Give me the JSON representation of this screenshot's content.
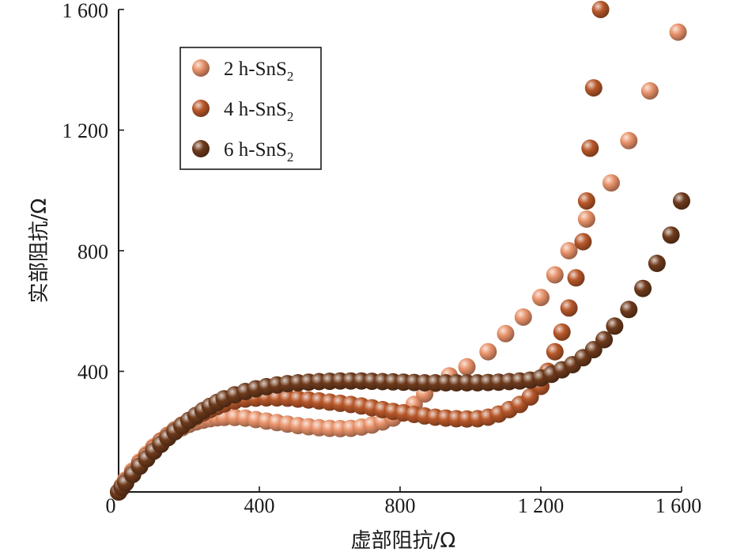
{
  "chart_data": {
    "type": "scatter",
    "xlabel": "虚部阻抗/Ω",
    "ylabel": "实部阻抗/Ω",
    "xlim": [
      0,
      1600
    ],
    "ylim": [
      0,
      1600
    ],
    "x_ticks": [
      "0",
      "400",
      "800",
      "1 200",
      "1 600"
    ],
    "y_ticks": [
      "400",
      "800",
      "1 200",
      "1 600"
    ],
    "legend_position": "top-left",
    "series": [
      {
        "name_prefix": "2 h-SnS",
        "name_subscript": "2",
        "color": "#e8926a",
        "points": [
          [
            0,
            0
          ],
          [
            10,
            20
          ],
          [
            20,
            40
          ],
          [
            40,
            70
          ],
          [
            60,
            100
          ],
          [
            80,
            125
          ],
          [
            100,
            150
          ],
          [
            120,
            170
          ],
          [
            140,
            185
          ],
          [
            160,
            200
          ],
          [
            180,
            213
          ],
          [
            200,
            224
          ],
          [
            220,
            232
          ],
          [
            240,
            238
          ],
          [
            260,
            243
          ],
          [
            280,
            246
          ],
          [
            300,
            247
          ],
          [
            330,
            247
          ],
          [
            360,
            245
          ],
          [
            390,
            240
          ],
          [
            420,
            235
          ],
          [
            450,
            230
          ],
          [
            480,
            225
          ],
          [
            510,
            220
          ],
          [
            540,
            216
          ],
          [
            570,
            213
          ],
          [
            600,
            211
          ],
          [
            630,
            210
          ],
          [
            660,
            211
          ],
          [
            690,
            215
          ],
          [
            720,
            222
          ],
          [
            750,
            232
          ],
          [
            780,
            245
          ],
          [
            810,
            263
          ],
          [
            840,
            290
          ],
          [
            870,
            325
          ],
          [
            900,
            360
          ],
          [
            940,
            385
          ],
          [
            990,
            415
          ],
          [
            1050,
            465
          ],
          [
            1100,
            525
          ],
          [
            1150,
            580
          ],
          [
            1200,
            645
          ],
          [
            1240,
            720
          ],
          [
            1280,
            800
          ],
          [
            1330,
            905
          ],
          [
            1400,
            1025
          ],
          [
            1450,
            1165
          ],
          [
            1510,
            1330
          ],
          [
            1590,
            1525
          ]
        ]
      },
      {
        "name_prefix": "4 h-SnS",
        "name_subscript": "2",
        "color": "#b8582a",
        "points": [
          [
            0,
            0
          ],
          [
            10,
            18
          ],
          [
            20,
            36
          ],
          [
            40,
            65
          ],
          [
            60,
            95
          ],
          [
            80,
            120
          ],
          [
            100,
            145
          ],
          [
            120,
            168
          ],
          [
            140,
            188
          ],
          [
            160,
            206
          ],
          [
            180,
            222
          ],
          [
            200,
            237
          ],
          [
            220,
            250
          ],
          [
            240,
            262
          ],
          [
            260,
            273
          ],
          [
            280,
            283
          ],
          [
            300,
            292
          ],
          [
            330,
            302
          ],
          [
            360,
            308
          ],
          [
            390,
            311
          ],
          [
            420,
            312
          ],
          [
            450,
            312
          ],
          [
            480,
            311
          ],
          [
            510,
            308
          ],
          [
            540,
            305
          ],
          [
            570,
            302
          ],
          [
            600,
            298
          ],
          [
            630,
            294
          ],
          [
            660,
            290
          ],
          [
            690,
            285
          ],
          [
            720,
            279
          ],
          [
            750,
            273
          ],
          [
            780,
            267
          ],
          [
            810,
            262
          ],
          [
            840,
            257
          ],
          [
            870,
            252
          ],
          [
            900,
            248
          ],
          [
            930,
            245
          ],
          [
            960,
            243
          ],
          [
            990,
            242
          ],
          [
            1020,
            243
          ],
          [
            1050,
            248
          ],
          [
            1080,
            258
          ],
          [
            1110,
            273
          ],
          [
            1140,
            290
          ],
          [
            1170,
            315
          ],
          [
            1200,
            350
          ],
          [
            1220,
            400
          ],
          [
            1240,
            465
          ],
          [
            1260,
            530
          ],
          [
            1280,
            610
          ],
          [
            1300,
            710
          ],
          [
            1320,
            830
          ],
          [
            1330,
            965
          ],
          [
            1340,
            1140
          ],
          [
            1350,
            1340
          ],
          [
            1370,
            1600
          ]
        ]
      },
      {
        "name_prefix": "6 h-SnS",
        "name_subscript": "2",
        "color": "#6e3a1c",
        "points": [
          [
            0,
            0
          ],
          [
            10,
            15
          ],
          [
            20,
            30
          ],
          [
            40,
            58
          ],
          [
            60,
            85
          ],
          [
            80,
            110
          ],
          [
            100,
            135
          ],
          [
            120,
            158
          ],
          [
            140,
            180
          ],
          [
            160,
            200
          ],
          [
            180,
            219
          ],
          [
            200,
            237
          ],
          [
            220,
            254
          ],
          [
            240,
            270
          ],
          [
            260,
            284
          ],
          [
            280,
            297
          ],
          [
            300,
            309
          ],
          [
            330,
            322
          ],
          [
            360,
            333
          ],
          [
            390,
            342
          ],
          [
            420,
            349
          ],
          [
            450,
            355
          ],
          [
            480,
            359
          ],
          [
            510,
            362
          ],
          [
            540,
            364
          ],
          [
            570,
            366
          ],
          [
            600,
            367
          ],
          [
            630,
            368
          ],
          [
            660,
            368
          ],
          [
            690,
            368
          ],
          [
            720,
            367
          ],
          [
            750,
            366
          ],
          [
            780,
            365
          ],
          [
            810,
            364
          ],
          [
            840,
            363
          ],
          [
            870,
            362
          ],
          [
            900,
            362
          ],
          [
            930,
            362
          ],
          [
            960,
            362
          ],
          [
            990,
            362
          ],
          [
            1020,
            362
          ],
          [
            1050,
            363
          ],
          [
            1080,
            364
          ],
          [
            1110,
            366
          ],
          [
            1140,
            368
          ],
          [
            1170,
            371
          ],
          [
            1200,
            378
          ],
          [
            1230,
            390
          ],
          [
            1260,
            405
          ],
          [
            1290,
            422
          ],
          [
            1320,
            445
          ],
          [
            1350,
            472
          ],
          [
            1380,
            505
          ],
          [
            1410,
            550
          ],
          [
            1450,
            605
          ],
          [
            1490,
            675
          ],
          [
            1530,
            758
          ],
          [
            1570,
            852
          ],
          [
            1600,
            965
          ]
        ]
      }
    ]
  }
}
